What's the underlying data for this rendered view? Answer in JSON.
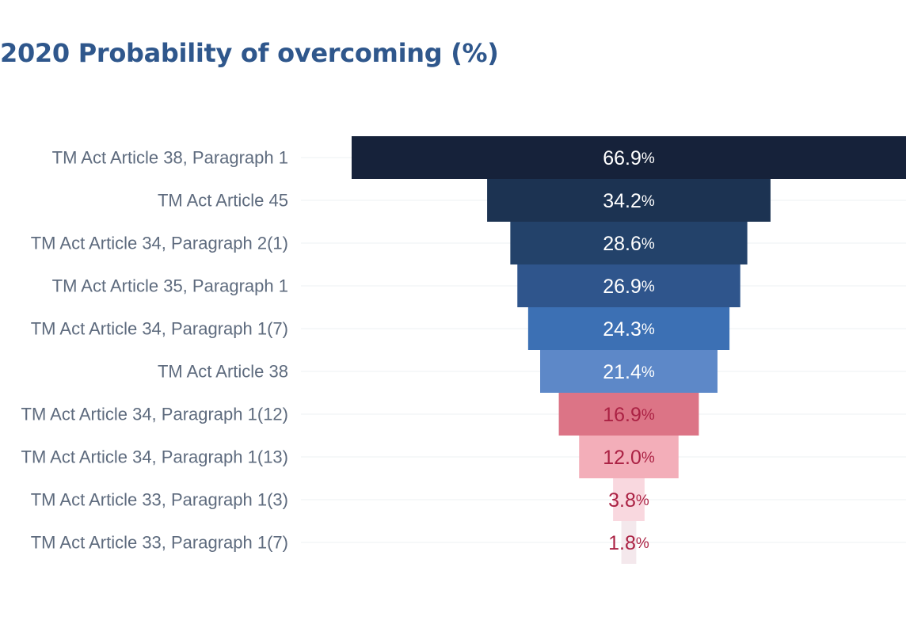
{
  "chart_data": {
    "type": "bar",
    "subtype": "funnel",
    "title": "2020 Probability of overcoming (%)",
    "xlabel": "",
    "ylabel": "",
    "value_suffix": "%",
    "grid": false,
    "legend": "none",
    "categories": [
      "TM Act Article 38, Paragraph 1",
      "TM Act Article 45",
      "TM Act Article 34, Paragraph 2(1)",
      "TM Act Article 35, Paragraph 1",
      "TM Act Article 34, Paragraph 1(7)",
      "TM Act Article 38",
      "TM Act Article 34, Paragraph 1(12)",
      "TM Act Article 34, Paragraph 1(13)",
      "TM Act Article 33, Paragraph 1(3)",
      "TM Act Article 33, Paragraph 1(7)"
    ],
    "values": [
      66.9,
      34.2,
      28.6,
      26.9,
      24.3,
      21.4,
      16.9,
      12.0,
      3.8,
      1.8
    ],
    "value_labels": [
      "66.9",
      "34.2",
      "28.6",
      "26.9",
      "24.3",
      "21.4",
      "16.9",
      "12.0",
      "3.8",
      "1.8"
    ],
    "bar_colors": [
      "#16223a",
      "#1c3352",
      "#23426a",
      "#2f558c",
      "#3c70b4",
      "#5d88c8",
      "#dc7486",
      "#f3aeb9",
      "#f9d8df",
      "#f4e8ec"
    ],
    "label_colors": [
      "#ffffff",
      "#ffffff",
      "#ffffff",
      "#ffffff",
      "#ffffff",
      "#ffffff",
      "#ab2244",
      "#ab2244",
      "#ab2244",
      "#ab2244"
    ]
  },
  "colors": {
    "title": "#2f578c",
    "category_label": "#5e6b7e",
    "gridline": "#eef0f3"
  }
}
